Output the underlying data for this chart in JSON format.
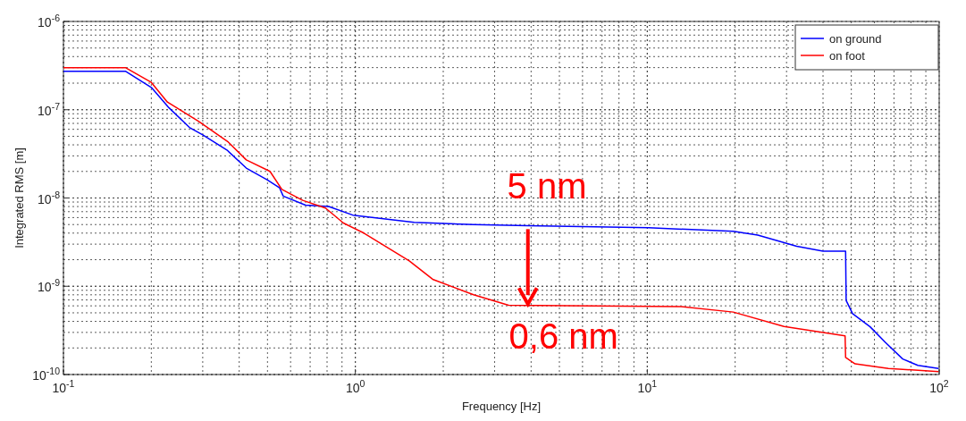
{
  "chart_data": {
    "type": "line",
    "xlabel": "Frequency [Hz]",
    "ylabel": "Integrated RMS [m]",
    "log": "xy",
    "grid": true,
    "legend": "top right",
    "line_style": "solid",
    "marker": "none",
    "xlim": [
      0.1,
      100
    ],
    "xticks": [
      {
        "value": 0.1,
        "label": "10$^{-1}$"
      },
      {
        "value": 1,
        "label": "10$^{0}$"
      },
      {
        "value": 10,
        "label": "10$^{1}$"
      },
      {
        "value": 100,
        "label": "10$^{2}$"
      }
    ],
    "ylim": [
      1e-10,
      1e-06
    ],
    "yticks": [
      {
        "value": 1e-10,
        "label": "10$^{-10}$"
      },
      {
        "value": 1e-09,
        "label": "10$^{-9}$"
      },
      {
        "value": 1e-08,
        "label": "10$^{-8}$"
      },
      {
        "value": 1e-07,
        "label": "10$^{-7}$"
      },
      {
        "value": 1e-06,
        "label": "10$^{-6}$"
      }
    ],
    "series": [
      {
        "name": "on ground",
        "color": "#0000ff",
        "x": [
          0.1,
          0.163,
          0.2,
          0.23,
          0.27,
          0.3,
          0.363,
          0.423,
          0.5,
          0.55,
          0.566,
          0.675,
          0.81,
          0.98,
          1.59,
          2.54,
          3.9,
          10.1,
          19.7,
          23.9,
          32.5,
          40,
          47.8,
          48,
          50.5,
          58,
          65.5,
          75,
          84.5,
          99.5
        ],
        "values": [
          2.73e-07,
          2.73e-07,
          1.79e-07,
          1.05e-07,
          6.3e-08,
          5.2e-08,
          3.5e-08,
          2.18e-08,
          1.6e-08,
          1.3e-08,
          1.05e-08,
          8.3e-09,
          8e-09,
          6.4e-09,
          5.3e-09,
          5e-09,
          4.86e-09,
          4.6e-09,
          4.2e-09,
          3.8e-09,
          2.84e-09,
          2.5e-09,
          2.5e-09,
          6.9e-10,
          4.9e-10,
          3.47e-10,
          2.3e-10,
          1.5e-10,
          1.27e-10,
          1.17e-10
        ]
      },
      {
        "name": "on foot",
        "color": "#ff0000",
        "x": [
          0.1,
          0.163,
          0.2,
          0.227,
          0.29,
          0.367,
          0.423,
          0.51,
          0.56,
          0.66,
          0.79,
          0.91,
          1.07,
          1.53,
          1.84,
          2.54,
          3.35,
          12.9,
          19.7,
          29.4,
          47.6,
          47.8,
          51.5,
          67,
          99.5
        ],
        "values": [
          3e-07,
          3e-07,
          2.04e-07,
          1.22e-07,
          7.4e-08,
          4.3e-08,
          2.7e-08,
          2e-08,
          1.25e-08,
          9.4e-09,
          7.7e-09,
          5.2e-09,
          4e-09,
          1.94e-09,
          1.2e-09,
          8e-10,
          6.1e-10,
          5.9e-10,
          5.1e-10,
          3.5e-10,
          2.74e-10,
          1.56e-10,
          1.32e-10,
          1.17e-10,
          1.08e-10
        ]
      }
    ],
    "annotations": [
      {
        "text": "5 nm",
        "x": 3.8,
        "y": 4.87e-09
      },
      {
        "text": "0,6 nm",
        "x": 3.9,
        "y": 6e-10
      }
    ]
  }
}
